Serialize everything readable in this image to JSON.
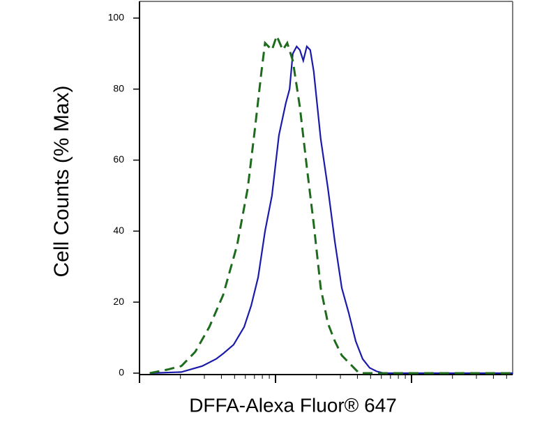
{
  "chart_data": {
    "type": "line",
    "xlabel": "DFFA-Alexa Fluor® 647",
    "ylabel": "Cell Counts (% Max)",
    "xscale": "log",
    "xlim": [
      1,
      554
    ],
    "xticks": [
      1,
      10,
      100
    ],
    "xminorticks": [
      2,
      3,
      4,
      5,
      6,
      7,
      8,
      9,
      20,
      30,
      40,
      50,
      60,
      70,
      80,
      90,
      200,
      300,
      400,
      500
    ],
    "ylim": [
      -0.4,
      104.7
    ],
    "yticks": [
      0,
      20,
      40,
      60,
      80,
      100
    ],
    "series": [
      {
        "color": "#1a1aaa",
        "dash": false,
        "x": [
          1.19,
          2.03,
          2.89,
          3.66,
          4.12,
          4.92,
          5.88,
          6.62,
          7.45,
          8.38,
          9.42,
          10.6,
          11.9,
          12.7,
          13.4,
          14.3,
          15.1,
          16.0,
          17.0,
          18.0,
          19.1,
          21.5,
          24.3,
          27.3,
          30.7,
          34.5,
          38.9,
          43.7,
          49.2,
          55.4,
          62.3,
          554
        ],
        "values": [
          0,
          0.3,
          2,
          4,
          5.5,
          8,
          13,
          19,
          27,
          40,
          50,
          67,
          76,
          80,
          90,
          92,
          91,
          88,
          92,
          91,
          85,
          66,
          52,
          37,
          24,
          17,
          9,
          4,
          1.5,
          0.5,
          0,
          0
        ]
      },
      {
        "color": "#1e6b1e",
        "dash": true,
        "x": [
          1.19,
          1.6,
          2.03,
          2.57,
          3.26,
          4.12,
          5.22,
          6.24,
          7.02,
          7.89,
          8.38,
          9.42,
          10.2,
          11.3,
          12.2,
          13.4,
          15.1,
          17.0,
          19.1,
          21.5,
          24.3,
          27.3,
          30.7,
          34.5,
          41.2,
          554
        ],
        "values": [
          0,
          1,
          2,
          6,
          13,
          22,
          36,
          52,
          68,
          85,
          93,
          91,
          95,
          91,
          93,
          88,
          75,
          58,
          42,
          24,
          14,
          9,
          5,
          3,
          0,
          0
        ]
      }
    ]
  }
}
